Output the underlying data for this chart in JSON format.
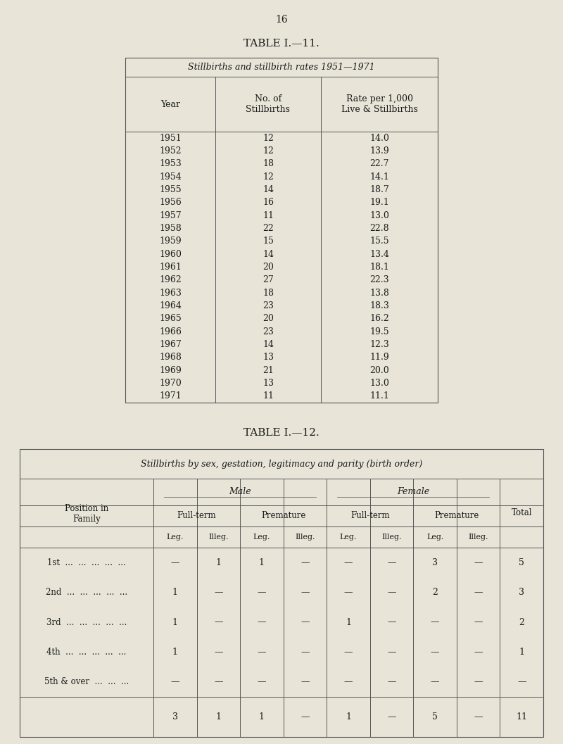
{
  "page_number": "16",
  "bg_color": "#e8e5d8",
  "table1_title": "TABLE I.—11.",
  "table1_header": "Stillbirths and stillbirth rates 1951—1971",
  "table1_col1": "Year",
  "table1_col2": "No. of\nStillbirths",
  "table1_col3": "Rate per 1,000\nLive & Stillbirths",
  "table1_data": [
    [
      "1951",
      "12",
      "14.0"
    ],
    [
      "1952",
      "12",
      "13.9"
    ],
    [
      "1953",
      "18",
      "22.7"
    ],
    [
      "1954",
      "12",
      "14.1"
    ],
    [
      "1955",
      "14",
      "18.7"
    ],
    [
      "1956",
      "16",
      "19.1"
    ],
    [
      "1957",
      "11",
      "13.0"
    ],
    [
      "1958",
      "22",
      "22.8"
    ],
    [
      "1959",
      "15",
      "15.5"
    ],
    [
      "1960",
      "14",
      "13.4"
    ],
    [
      "1961",
      "20",
      "18.1"
    ],
    [
      "1962",
      "27",
      "22.3"
    ],
    [
      "1963",
      "18",
      "13.8"
    ],
    [
      "1964",
      "23",
      "18.3"
    ],
    [
      "1965",
      "20",
      "16.2"
    ],
    [
      "1966",
      "23",
      "19.5"
    ],
    [
      "1967",
      "14",
      "12.3"
    ],
    [
      "1968",
      "13",
      "11.9"
    ],
    [
      "1969",
      "21",
      "20.0"
    ],
    [
      "1970",
      "13",
      "13.0"
    ],
    [
      "1971",
      "11",
      "11.1"
    ]
  ],
  "table2_title": "TABLE I.—12.",
  "table2_header": "Stillbirths by sex, gestation, legitimacy and parity (birth order)",
  "table2_row_labels": [
    "1st  ...  ...  ...  ...  ...",
    "2nd  ...  ...  ...  ...  ...",
    "3rd  ...  ...  ...  ...  ...",
    "4th  ...  ...  ...  ...  ...",
    "5th & over  ...  ...  ..."
  ],
  "table2_rows": [
    [
      "—",
      "1",
      "1",
      "—",
      "—",
      "—",
      "3",
      "—",
      "5"
    ],
    [
      "1",
      "—",
      "—",
      "—",
      "—",
      "—",
      "2",
      "—",
      "3"
    ],
    [
      "1",
      "—",
      "—",
      "—",
      "1",
      "—",
      "—",
      "—",
      "2"
    ],
    [
      "1",
      "—",
      "—",
      "—",
      "—",
      "—",
      "—",
      "—",
      "1"
    ],
    [
      "—",
      "—",
      "—",
      "—",
      "—",
      "—",
      "—",
      "—",
      "—"
    ]
  ],
  "table2_totals": [
    "3",
    "1",
    "1",
    "—",
    "1",
    "—",
    "5",
    "—",
    "11"
  ]
}
